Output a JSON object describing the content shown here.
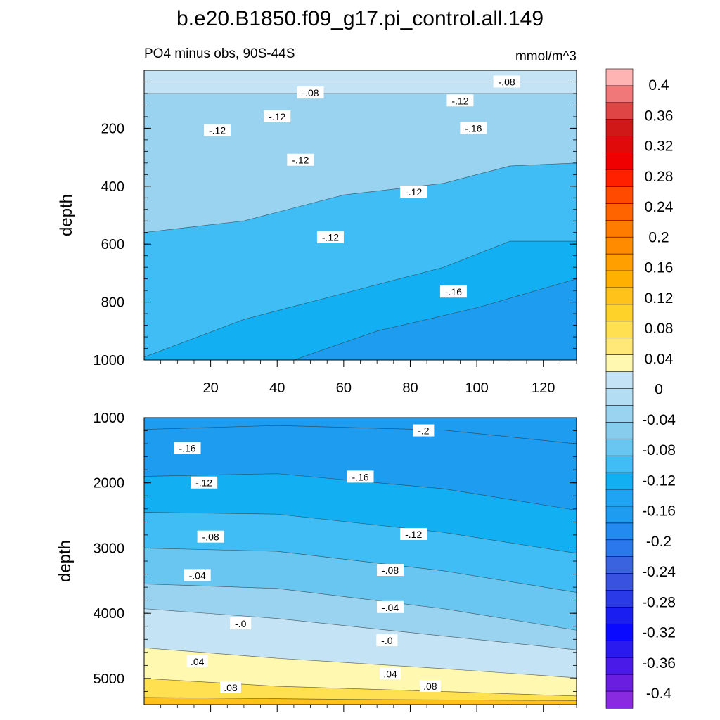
{
  "title": "b.e20.B1850.f09_g17.pi_control.all.149",
  "chart_data": [
    {
      "type": "contour",
      "panel": "upper",
      "subtitle_left": "PO4 minus obs, 90S-44S",
      "subtitle_right": "mmol/m^3",
      "xlabel": "",
      "ylabel": "depth",
      "xlim": [
        0,
        130
      ],
      "ylim": [
        1000,
        0
      ],
      "xticks": [
        20,
        40,
        60,
        80,
        100,
        120
      ],
      "xtick_labels": [
        "20",
        "40",
        "60",
        "80",
        "100",
        "120"
      ],
      "yticks": [
        200,
        400,
        600,
        800,
        1000
      ],
      "ytick_labels": [
        "200",
        "400",
        "600",
        "800",
        "1000"
      ],
      "bands": [
        {
          "level": -0.04,
          "color": "#c4e4f5",
          "boundary": [
            [
              0,
              40
            ],
            [
              130,
              40
            ]
          ]
        },
        {
          "level": -0.08,
          "color": "#9ad3ef",
          "boundary": [
            [
              0,
              80
            ],
            [
              130,
              80
            ]
          ]
        },
        {
          "level": -0.12,
          "color": "#3fbdf4",
          "boundary": [
            [
              0,
              560
            ],
            [
              30,
              520
            ],
            [
              60,
              430
            ],
            [
              90,
              390
            ],
            [
              110,
              330
            ],
            [
              130,
              320
            ]
          ]
        },
        {
          "level": -0.16,
          "color": "#12b0f2",
          "boundary": [
            [
              0,
              990
            ],
            [
              30,
              860
            ],
            [
              60,
              770
            ],
            [
              90,
              680
            ],
            [
              110,
              590
            ],
            [
              130,
              590
            ]
          ]
        },
        {
          "level": -0.2,
          "color": "#1d9cf0",
          "boundary": [
            [
              45,
              1000
            ],
            [
              70,
              900
            ],
            [
              100,
              820
            ],
            [
              130,
              720
            ]
          ]
        }
      ],
      "contour_labels": [
        {
          "text": "-.08",
          "x": 50,
          "y": 78
        },
        {
          "text": "-.08",
          "x": 109,
          "y": 40
        },
        {
          "text": "-.12",
          "x": 40,
          "y": 160
        },
        {
          "text": "-.12",
          "x": 95,
          "y": 105
        },
        {
          "text": "-.12",
          "x": 22,
          "y": 208
        },
        {
          "text": "-.12",
          "x": 47,
          "y": 310
        },
        {
          "text": "-.12",
          "x": 81,
          "y": 420
        },
        {
          "text": "-.12",
          "x": 56,
          "y": 577
        },
        {
          "text": "-.16",
          "x": 99,
          "y": 200
        },
        {
          "text": "-.16",
          "x": 93,
          "y": 765
        }
      ]
    },
    {
      "type": "contour",
      "panel": "lower",
      "xlabel": "",
      "ylabel": "depth",
      "xlim": [
        0,
        130
      ],
      "ylim": [
        5400,
        1000
      ],
      "yticks": [
        1000,
        2000,
        3000,
        4000,
        5000
      ],
      "ytick_labels": [
        "1000",
        "2000",
        "3000",
        "4000",
        "5000"
      ],
      "bands": [
        {
          "level": -0.2,
          "color": "#1d9cf0",
          "boundary": [
            [
              0,
              1180
            ],
            [
              40,
              1120
            ],
            [
              90,
              1190
            ],
            [
              130,
              1400
            ]
          ]
        },
        {
          "level": -0.16,
          "color": "#12b0f2",
          "boundary": [
            [
              0,
              1900
            ],
            [
              40,
              1860
            ],
            [
              90,
              2090
            ],
            [
              130,
              2420
            ]
          ]
        },
        {
          "level": -0.12,
          "color": "#3fbdf4",
          "boundary": [
            [
              0,
              2450
            ],
            [
              40,
              2480
            ],
            [
              90,
              2760
            ],
            [
              130,
              3080
            ]
          ]
        },
        {
          "level": -0.08,
          "color": "#68c6f1",
          "boundary": [
            [
              0,
              3000
            ],
            [
              40,
              3050
            ],
            [
              90,
              3350
            ],
            [
              130,
              3680
            ]
          ]
        },
        {
          "level": -0.04,
          "color": "#9ad3ef",
          "boundary": [
            [
              0,
              3550
            ],
            [
              40,
              3620
            ],
            [
              90,
              3930
            ],
            [
              130,
              4260
            ]
          ]
        },
        {
          "level": 0.0,
          "color": "#c4e4f5",
          "boundary": [
            [
              0,
              3930
            ],
            [
              40,
              4080
            ],
            [
              90,
              4350
            ],
            [
              130,
              4560
            ]
          ]
        },
        {
          "level": 0.04,
          "color": "#fff8b0",
          "boundary": [
            [
              0,
              4530
            ],
            [
              40,
              4690
            ],
            [
              90,
              4850
            ],
            [
              130,
              4990
            ]
          ]
        },
        {
          "level": 0.08,
          "color": "#ffe050",
          "boundary": [
            [
              0,
              5000
            ],
            [
              40,
              5120
            ],
            [
              90,
              5200
            ],
            [
              130,
              5270
            ]
          ]
        },
        {
          "level": 0.12,
          "color": "#ffc21a",
          "boundary": [
            [
              0,
              5290
            ],
            [
              60,
              5320
            ],
            [
              130,
              5340
            ]
          ]
        }
      ],
      "contour_labels": [
        {
          "text": "-.2",
          "x": 84,
          "y": 1200
        },
        {
          "text": "-.16",
          "x": 13,
          "y": 1470
        },
        {
          "text": "-.16",
          "x": 65,
          "y": 1910
        },
        {
          "text": "-.12",
          "x": 18,
          "y": 2000
        },
        {
          "text": "-.12",
          "x": 81,
          "y": 2790
        },
        {
          "text": "-.08",
          "x": 20,
          "y": 2830
        },
        {
          "text": "-.08",
          "x": 74,
          "y": 3340
        },
        {
          "text": "-.04",
          "x": 16,
          "y": 3420
        },
        {
          "text": "-.04",
          "x": 74,
          "y": 3910
        },
        {
          "text": "-.0",
          "x": 29,
          "y": 4160
        },
        {
          "text": "-.0",
          "x": 73,
          "y": 4420
        },
        {
          "text": ".04",
          "x": 16,
          "y": 4740
        },
        {
          "text": ".04",
          "x": 74,
          "y": 4930
        },
        {
          "text": ".08",
          "x": 26,
          "y": 5140
        },
        {
          "text": ".08",
          "x": 86,
          "y": 5120
        }
      ]
    }
  ],
  "colorbar": {
    "levels": [
      "0.4",
      "0.36",
      "0.32",
      "0.28",
      "0.24",
      "0.2",
      "0.16",
      "0.12",
      "0.08",
      "0.04",
      "0",
      "-0.04",
      "-0.08",
      "-0.12",
      "-0.16",
      "-0.2",
      "-0.24",
      "-0.28",
      "-0.32",
      "-0.36",
      "-0.4"
    ],
    "colors": [
      "#ffb4b4",
      "#f07878",
      "#e04545",
      "#d01818",
      "#e00a0a",
      "#f00000",
      "#ff2000",
      "#ff4a00",
      "#ff6400",
      "#ff7c00",
      "#ff8c00",
      "#ffa000",
      "#ffb000",
      "#ffc21a",
      "#ffd22a",
      "#ffe050",
      "#ffe878",
      "#fff8b0",
      "#c4e4f5",
      "#b2ddf3",
      "#9ad3ef",
      "#88cced",
      "#68c6f1",
      "#3fbdf4",
      "#12b0f2",
      "#1ea4f3",
      "#1d9cf0",
      "#228af0",
      "#2b78ec",
      "#3a63e0",
      "#3a52e0",
      "#2a3ae6",
      "#1a1ef0",
      "#0a0aff",
      "#2a1af0",
      "#4a1ae8",
      "#6a1ee0",
      "#8a2ae0"
    ]
  }
}
